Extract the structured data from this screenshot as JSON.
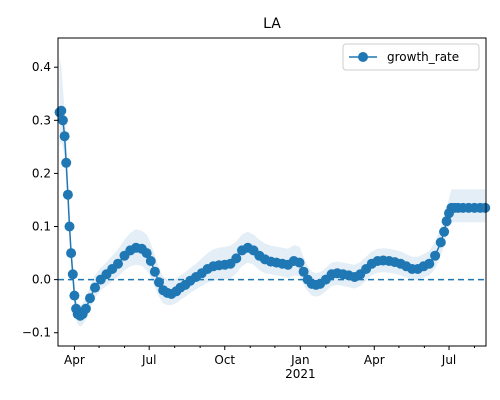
{
  "chart_data": {
    "type": "line",
    "title": "LA",
    "xlabel": "",
    "ylabel": "",
    "x_axis": {
      "kind": "date",
      "range": [
        "2020-03-12",
        "2021-08-15"
      ],
      "major_ticks": [
        {
          "date": "2020-04-01",
          "label": "Apr"
        },
        {
          "date": "2020-07-01",
          "label": "Jul"
        },
        {
          "date": "2020-10-01",
          "label": "Oct"
        },
        {
          "date": "2021-01-01",
          "label": "Jan"
        },
        {
          "date": "2021-04-01",
          "label": "Apr"
        },
        {
          "date": "2021-07-01",
          "label": "Jul"
        }
      ],
      "year_label": {
        "date": "2021-01-01",
        "text": "2021"
      }
    },
    "y_axis": {
      "range": [
        -0.125,
        0.455
      ],
      "ticks": [
        -0.1,
        0.0,
        0.1,
        0.2,
        0.3,
        0.4
      ],
      "tick_labels": [
        "−0.1",
        "0.0",
        "0.1",
        "0.2",
        "0.3",
        "0.4"
      ]
    },
    "reference_line": {
      "y": 0,
      "style": "dashed",
      "color": "#1f77b4"
    },
    "legend": {
      "placement": "top-right",
      "entries": [
        "growth_rate"
      ]
    },
    "colors": {
      "series": "#1f77b4",
      "band": "#1f77b4"
    },
    "series": [
      {
        "name": "growth_rate",
        "marker": "circle",
        "x": [
          "2020-03-14",
          "2020-03-16",
          "2020-03-18",
          "2020-03-20",
          "2020-03-22",
          "2020-03-24",
          "2020-03-26",
          "2020-03-28",
          "2020-03-30",
          "2020-04-01",
          "2020-04-03",
          "2020-04-05",
          "2020-04-08",
          "2020-04-11",
          "2020-04-15",
          "2020-04-20",
          "2020-04-26",
          "2020-05-03",
          "2020-05-10",
          "2020-05-17",
          "2020-05-24",
          "2020-06-01",
          "2020-06-08",
          "2020-06-15",
          "2020-06-22",
          "2020-06-28",
          "2020-07-03",
          "2020-07-08",
          "2020-07-13",
          "2020-07-18",
          "2020-07-23",
          "2020-07-28",
          "2020-08-03",
          "2020-08-08",
          "2020-08-14",
          "2020-08-20",
          "2020-08-27",
          "2020-09-03",
          "2020-09-10",
          "2020-09-17",
          "2020-09-24",
          "2020-10-01",
          "2020-10-08",
          "2020-10-15",
          "2020-10-22",
          "2020-10-29",
          "2020-11-05",
          "2020-11-12",
          "2020-11-19",
          "2020-11-26",
          "2020-12-03",
          "2020-12-10",
          "2020-12-17",
          "2020-12-24",
          "2020-12-31",
          "2021-01-05",
          "2021-01-10",
          "2021-01-15",
          "2021-01-20",
          "2021-01-25",
          "2021-02-01",
          "2021-02-08",
          "2021-02-15",
          "2021-02-22",
          "2021-03-01",
          "2021-03-08",
          "2021-03-15",
          "2021-03-22",
          "2021-03-29",
          "2021-04-05",
          "2021-04-12",
          "2021-04-19",
          "2021-04-26",
          "2021-05-03",
          "2021-05-10",
          "2021-05-17",
          "2021-05-24",
          "2021-05-31",
          "2021-06-07",
          "2021-06-14",
          "2021-06-21",
          "2021-06-25",
          "2021-06-28",
          "2021-07-01",
          "2021-07-04",
          "2021-07-08",
          "2021-07-12",
          "2021-07-18",
          "2021-07-25",
          "2021-08-01",
          "2021-08-08",
          "2021-08-14"
        ],
        "values": [
          0.315,
          0.318,
          0.3,
          0.27,
          0.22,
          0.16,
          0.1,
          0.05,
          0.01,
          -0.03,
          -0.055,
          -0.065,
          -0.068,
          -0.065,
          -0.055,
          -0.035,
          -0.015,
          0.0,
          0.01,
          0.02,
          0.03,
          0.045,
          0.055,
          0.06,
          0.058,
          0.05,
          0.035,
          0.015,
          -0.005,
          -0.02,
          -0.025,
          -0.027,
          -0.022,
          -0.015,
          -0.01,
          -0.002,
          0.005,
          0.012,
          0.02,
          0.025,
          0.027,
          0.028,
          0.03,
          0.04,
          0.055,
          0.06,
          0.055,
          0.045,
          0.038,
          0.034,
          0.032,
          0.03,
          0.028,
          0.035,
          0.032,
          0.015,
          0.0,
          -0.008,
          -0.01,
          -0.008,
          0.0,
          0.01,
          0.012,
          0.01,
          0.008,
          0.005,
          0.01,
          0.02,
          0.03,
          0.035,
          0.036,
          0.035,
          0.033,
          0.03,
          0.025,
          0.02,
          0.02,
          0.025,
          0.03,
          0.045,
          0.07,
          0.09,
          0.11,
          0.125,
          0.135,
          0.135,
          0.135,
          0.135,
          0.135,
          0.135,
          0.135,
          0.135
        ],
        "uncertainty_band": {
          "lower": [
            0.25,
            0.26,
            0.25,
            0.23,
            0.19,
            0.14,
            0.08,
            0.03,
            -0.01,
            -0.05,
            -0.075,
            -0.085,
            -0.088,
            -0.085,
            -0.075,
            -0.055,
            -0.035,
            -0.02,
            -0.012,
            -0.003,
            0.005,
            0.018,
            0.025,
            0.028,
            0.026,
            0.018,
            0.005,
            -0.015,
            -0.032,
            -0.045,
            -0.048,
            -0.048,
            -0.044,
            -0.038,
            -0.032,
            -0.025,
            -0.018,
            -0.012,
            -0.006,
            -0.002,
            0.0,
            0.0,
            0.002,
            0.012,
            0.025,
            0.032,
            0.028,
            0.018,
            0.012,
            0.01,
            0.008,
            0.006,
            0.003,
            0.008,
            0.006,
            -0.01,
            -0.022,
            -0.03,
            -0.032,
            -0.03,
            -0.022,
            -0.012,
            -0.01,
            -0.012,
            -0.014,
            -0.017,
            -0.012,
            -0.002,
            0.008,
            0.013,
            0.014,
            0.013,
            0.011,
            0.008,
            0.004,
            0.0,
            0.0,
            0.004,
            0.008,
            0.02,
            0.045,
            0.065,
            0.085,
            0.1,
            0.108,
            0.108,
            0.108,
            0.108,
            0.108,
            0.108,
            0.108,
            0.108
          ],
          "upper": [
            0.42,
            0.4,
            0.36,
            0.32,
            0.26,
            0.19,
            0.13,
            0.075,
            0.035,
            -0.005,
            -0.035,
            -0.045,
            -0.048,
            -0.045,
            -0.035,
            -0.012,
            0.008,
            0.022,
            0.033,
            0.045,
            0.057,
            0.075,
            0.088,
            0.095,
            0.092,
            0.085,
            0.068,
            0.045,
            0.022,
            0.006,
            0.0,
            -0.002,
            0.002,
            0.008,
            0.014,
            0.022,
            0.03,
            0.04,
            0.05,
            0.057,
            0.06,
            0.062,
            0.064,
            0.072,
            0.085,
            0.09,
            0.085,
            0.075,
            0.068,
            0.064,
            0.062,
            0.06,
            0.058,
            0.065,
            0.062,
            0.042,
            0.025,
            0.015,
            0.012,
            0.014,
            0.022,
            0.032,
            0.034,
            0.032,
            0.03,
            0.028,
            0.033,
            0.043,
            0.053,
            0.058,
            0.059,
            0.058,
            0.056,
            0.053,
            0.048,
            0.043,
            0.043,
            0.048,
            0.054,
            0.072,
            0.098,
            0.118,
            0.138,
            0.152,
            0.17,
            0.17,
            0.17,
            0.17,
            0.17,
            0.17,
            0.17,
            0.17
          ]
        }
      }
    ]
  }
}
